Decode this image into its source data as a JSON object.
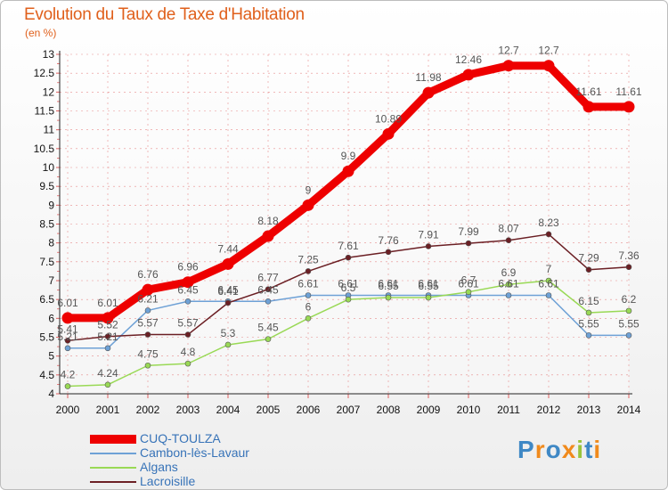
{
  "title": "Evolution du Taux de Taxe d'Habitation",
  "unit_label": "(en %)",
  "logo_text": "Proxiti",
  "colors": {
    "title": "#e0601c",
    "cuq": "#ee0000",
    "cambon": "#6ea1d6",
    "algans": "#99d955",
    "lacroisille": "#6b1f24",
    "grid": "#e06060"
  },
  "chart_data": {
    "type": "line",
    "title": "Evolution du Taux de Taxe d'Habitation",
    "ylabel": "(en %)",
    "xlabel": "",
    "ylim": [
      4,
      13
    ],
    "grid": "horizontal dashed",
    "legend_position": "bottom-left",
    "x": [
      "2000",
      "2001",
      "2002",
      "2003",
      "2004",
      "2005",
      "2006",
      "2007",
      "2008",
      "2009",
      "2010",
      "2011",
      "2012",
      "2013",
      "2014"
    ],
    "y_ticks": [
      "4",
      "4.5",
      "5",
      "5.5",
      "6",
      "6.5",
      "7",
      "7.5",
      "8",
      "8.5",
      "9",
      "9.5",
      "10",
      "10.5",
      "11",
      "11.5",
      "12",
      "12.5",
      "13"
    ],
    "series": [
      {
        "name": "CUQ-TOULZA",
        "color": "#ee0000",
        "width": 9,
        "marker": true,
        "values": [
          6.01,
          6.01,
          6.76,
          6.96,
          7.44,
          8.18,
          9,
          9.9,
          10.89,
          11.98,
          12.46,
          12.7,
          12.7,
          11.61,
          11.61
        ],
        "labels": [
          "6.01",
          "6.01",
          "6.76",
          "6.96",
          "7.44",
          "8.18",
          "9",
          "9.9",
          "10.89",
          "11.98",
          "12.46",
          "12.7",
          "12.7",
          "11.61",
          "11.61"
        ]
      },
      {
        "name": "Cambon-lès-Lavaur",
        "color": "#6ea1d6",
        "width": 1.5,
        "marker": true,
        "values": [
          5.21,
          5.21,
          6.21,
          6.45,
          6.45,
          6.45,
          6.61,
          6.61,
          6.61,
          6.61,
          6.61,
          6.61,
          6.61,
          5.55,
          5.55
        ],
        "labels": [
          "5.21",
          "5.21",
          "6.21",
          "6.45",
          "6.45",
          "6.45",
          "6.61",
          "6.61",
          "6.61",
          "6.61",
          "6.61",
          "6.61",
          "6.61",
          "5.55",
          "5.55"
        ]
      },
      {
        "name": "Algans",
        "color": "#99d955",
        "width": 1.5,
        "marker": true,
        "values": [
          4.2,
          4.24,
          4.75,
          4.8,
          5.3,
          5.45,
          6,
          6.5,
          6.55,
          6.55,
          6.7,
          6.9,
          7,
          6.15,
          6.2
        ],
        "labels": [
          "4.2",
          "4.24",
          "4.75",
          "4.8",
          "5.3",
          "5.45",
          "6",
          "6.5",
          "6.55",
          "6.55",
          "6.7",
          "6.9",
          "7",
          "6.15",
          "6.2"
        ]
      },
      {
        "name": "Lacroisille",
        "color": "#6b1f24",
        "width": 1.5,
        "marker": true,
        "values": [
          5.41,
          5.52,
          5.57,
          5.57,
          6.41,
          6.77,
          7.25,
          7.61,
          7.76,
          7.91,
          7.99,
          8.07,
          8.23,
          7.29,
          7.36
        ],
        "labels": [
          "5.41",
          "5.52",
          "5.57",
          "5.57",
          "6.41",
          "6.77",
          "7.25",
          "7.61",
          "7.76",
          "7.91",
          "7.99",
          "8.07",
          "8.23",
          "7.29",
          "7.36"
        ]
      }
    ]
  }
}
